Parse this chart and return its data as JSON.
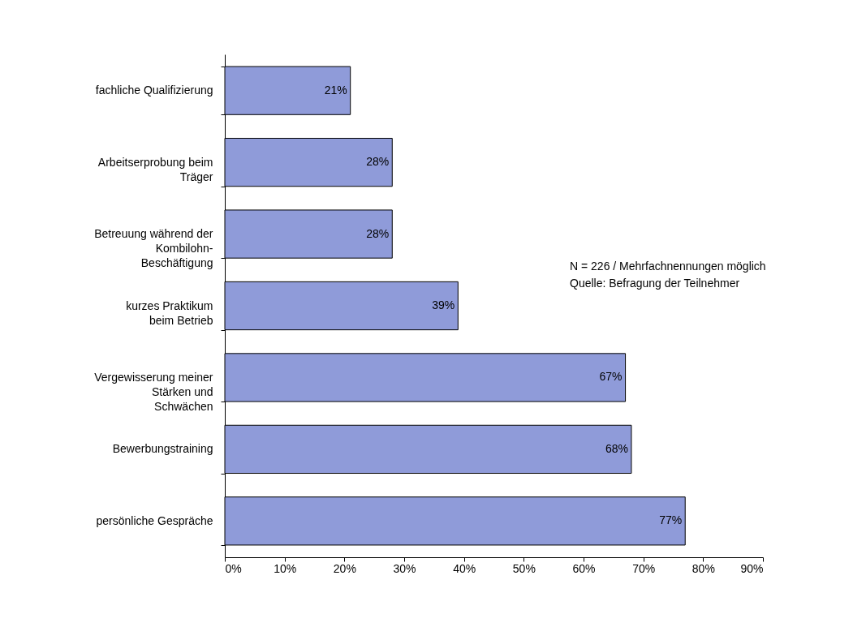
{
  "chart_data": {
    "type": "bar",
    "orientation": "horizontal",
    "categories": [
      "fachliche Qualifizierung",
      "Arbeitserprobung beim\nTräger",
      "Betreuung während der\nKombilohn-\nBeschäftigung",
      "kurzes Praktikum\nbeim Betrieb",
      "Vergewisserung meiner\nStärken und\nSchwächen",
      "Bewerbungstraining",
      "persönliche Gespräche"
    ],
    "values": [
      21,
      28,
      28,
      39,
      67,
      68,
      77
    ],
    "value_labels": [
      "21%",
      "28%",
      "28%",
      "39%",
      "67%",
      "68%",
      "77%"
    ],
    "color": "#8f9bd9",
    "xlim": [
      0,
      90
    ],
    "xticks": [
      {
        "value": 0,
        "label": "0%"
      },
      {
        "value": 10,
        "label": "10%"
      },
      {
        "value": 20,
        "label": "20%"
      },
      {
        "value": 30,
        "label": "30%"
      },
      {
        "value": 40,
        "label": "40%"
      },
      {
        "value": 50,
        "label": "50%"
      },
      {
        "value": 60,
        "label": "60%"
      },
      {
        "value": 70,
        "label": "70%"
      },
      {
        "value": 80,
        "label": "80%"
      },
      {
        "value": 90,
        "label": "90%"
      }
    ],
    "grid": false,
    "annotations": [
      "N =  226 / Mehrfachnennungen möglich",
      "Quelle: Befragung der Teilnehmer"
    ]
  }
}
